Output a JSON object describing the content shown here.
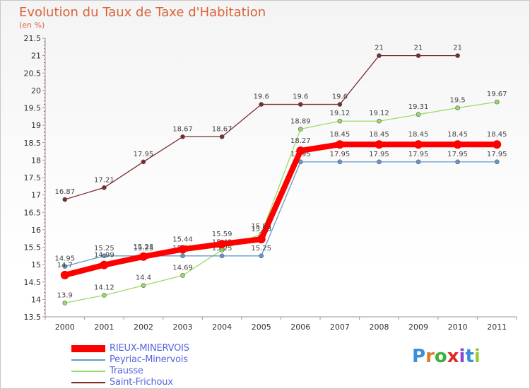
{
  "title": "Evolution du Taux de Taxe d'Habitation",
  "unit": "(en %)",
  "logo": {
    "letters": [
      "P",
      "r",
      "o",
      "x",
      "i",
      "t",
      "i"
    ],
    "colors": [
      "#3b8fd9",
      "#e07b2a",
      "#3bb03b",
      "#e02828",
      "#8a4ad0",
      "#3b8fd9",
      "#9ac93b"
    ]
  },
  "chart_data": {
    "type": "line",
    "title": "Evolution du Taux de Taxe d'Habitation",
    "ylabel": "(en %)",
    "xlabel": "",
    "x": [
      "2000",
      "2001",
      "2002",
      "2003",
      "2004",
      "2005",
      "2006",
      "2007",
      "2008",
      "2009",
      "2010",
      "2011"
    ],
    "yticks": [
      "13.5",
      "14",
      "14.5",
      "15",
      "15.5",
      "16",
      "16.5",
      "17",
      "17.5",
      "18",
      "18.5",
      "19",
      "19.5",
      "20",
      "20.5",
      "21",
      "21.5"
    ],
    "ylim": [
      13.5,
      21.5
    ],
    "grid": false,
    "legend_position": "bottom-left",
    "series": [
      {
        "name": "RIEUX-MINERVOIS",
        "color": "#ff0000",
        "values": [
          14.7,
          14.99,
          15.23,
          15.44,
          15.59,
          15.73,
          18.27,
          18.45,
          18.45,
          18.45,
          18.45,
          18.45
        ],
        "labels": [
          "14.7",
          "14.99",
          "15.23",
          "15.44",
          "15.59",
          "15.73",
          "18.27",
          "18.45",
          "18.45",
          "18.45",
          "18.45",
          "18.45"
        ]
      },
      {
        "name": "Peyriac-Minervois",
        "color": "#6699cc",
        "values": [
          14.95,
          15.25,
          15.25,
          15.25,
          15.25,
          15.25,
          17.95,
          17.95,
          17.95,
          17.95,
          17.95,
          17.95
        ],
        "labels": [
          "14.95",
          "15.25",
          "15.25",
          "15.25",
          "15.25",
          "15.25",
          "17.95",
          "17.95",
          "17.95",
          "17.95",
          "17.95",
          "17.95"
        ]
      },
      {
        "name": "Trausse",
        "color": "#99dd66",
        "values": [
          13.9,
          14.12,
          14.4,
          14.69,
          15.42,
          15.88,
          18.89,
          19.12,
          19.12,
          19.31,
          19.5,
          19.67
        ],
        "labels": [
          "13.9",
          "14.12",
          "14.4",
          "14.69",
          "15.42",
          "15.88",
          "18.89",
          "19.12",
          "19.12",
          "19.31",
          "19.5",
          "19.67"
        ]
      },
      {
        "name": "Saint-Frichoux",
        "color": "#7b2c2c",
        "values": [
          16.87,
          17.21,
          17.95,
          18.67,
          18.67,
          19.6,
          19.6,
          19.6,
          21,
          21,
          21,
          null
        ],
        "labels": [
          "16.87",
          "17.21",
          "17.95",
          "18.67",
          "18.67",
          "19.6",
          "19.6",
          "19.6",
          "21",
          "21",
          "21",
          ""
        ]
      }
    ]
  }
}
